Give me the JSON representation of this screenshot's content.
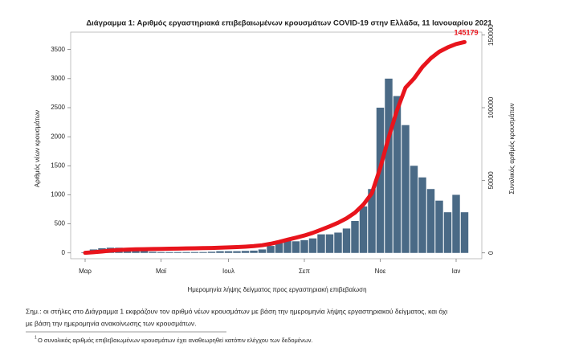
{
  "chart_data": {
    "type": "bar-line",
    "title": "Διάγραμμα 1: Αριθμός εργαστηριακά επιβεβαιωμένων κρουσμάτων COVID-19 στην Ελλάδα, 11 Ιανουαρίου 2021",
    "x_label": "Ημερομηνία λήψης δείγματος προς εργαστηριακή επιβεβαίωση",
    "y_label": "Αριθμός νέων κρουσμάτων",
    "y2_label": "Συνολικός αριθμός κρουσμάτων",
    "categories": [
      "Μαρ",
      null,
      null,
      null,
      null,
      null,
      null,
      null,
      null,
      "Μαϊ",
      null,
      null,
      null,
      null,
      null,
      null,
      null,
      "Ιουλ",
      null,
      null,
      null,
      null,
      null,
      null,
      null,
      null,
      "Σεπ",
      null,
      null,
      null,
      null,
      null,
      null,
      null,
      null,
      "Νοε",
      null,
      null,
      null,
      null,
      null,
      null,
      null,
      null,
      "Ιαν",
      null
    ],
    "series": [
      {
        "color": "#4a6a86",
        "values": [
          10,
          60,
          80,
          90,
          90,
          80,
          60,
          40,
          20,
          15,
          15,
          15,
          15,
          15,
          15,
          20,
          30,
          30,
          30,
          35,
          40,
          60,
          120,
          180,
          220,
          200,
          220,
          250,
          320,
          320,
          350,
          420,
          550,
          800,
          1100,
          2500,
          3000,
          2700,
          2200,
          1500,
          1300,
          1100,
          900,
          700,
          1000,
          700
        ]
      },
      {
        "color": "#e8141c",
        "axis": "y2",
        "values": [
          100,
          500,
          1000,
          1600,
          2000,
          2300,
          2500,
          2600,
          2700,
          2800,
          2900,
          3000,
          3100,
          3200,
          3300,
          3400,
          3600,
          3800,
          4000,
          4300,
          4700,
          5300,
          6300,
          7600,
          9100,
          10500,
          12000,
          13800,
          16000,
          18300,
          20800,
          23800,
          27700,
          33300,
          41000,
          58500,
          79500,
          98400,
          113800,
          120000,
          128000,
          134000,
          138500,
          141500,
          143800,
          145179
        ]
      }
    ],
    "ylim": [
      -100,
      3800
    ],
    "yticks": [
      0,
      500,
      1000,
      1500,
      2000,
      2500,
      3000,
      3500
    ],
    "y2lim": [
      -4000,
      152000
    ],
    "y2ticks": [
      0,
      50000,
      100000,
      150000
    ],
    "notes": [
      "Σημ.: οι στήλες στο Διάγραμμα 1 εκφράζουν τον αριθμό νέων κρουσμάτων με βάση την ημερομηνία λήψης εργαστηριακού δείγματος, και όχι",
      "με βάση την ημερομηνία ανακοίνωσης των κρουσμάτων."
    ],
    "footnote_mark": "1",
    "footnote": "Ο συνολικός αριθμός επιβεβαιωμένων κρουσμάτων έχει αναθεωρηθεί κατόπιν ελέγχου των δεδομένων."
  }
}
